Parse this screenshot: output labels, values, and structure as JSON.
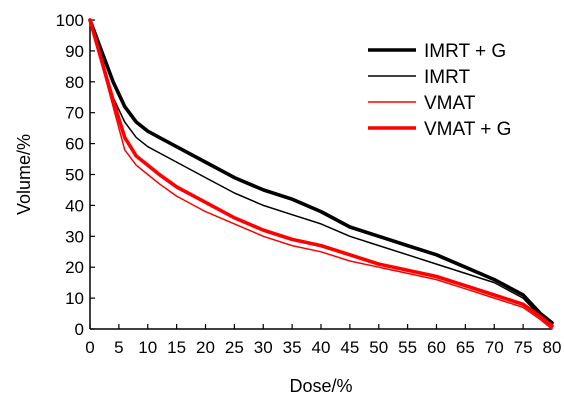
{
  "chart_data": {
    "type": "line",
    "xlabel": "Dose/%",
    "ylabel": "Volume/%",
    "xlim": [
      0,
      80
    ],
    "ylim": [
      0,
      100
    ],
    "xticks": [
      0,
      5,
      10,
      15,
      20,
      25,
      30,
      35,
      40,
      45,
      50,
      55,
      60,
      65,
      70,
      75,
      80
    ],
    "yticks": [
      0,
      10,
      20,
      30,
      40,
      50,
      60,
      70,
      80,
      90,
      100
    ],
    "grid": false,
    "legend_position": "top-right",
    "x": [
      0,
      2,
      4,
      6,
      8,
      10,
      12,
      15,
      20,
      25,
      30,
      35,
      40,
      45,
      50,
      55,
      60,
      65,
      70,
      75,
      78,
      80
    ],
    "series": [
      {
        "name": "IMRT + G",
        "color": "#000000",
        "line_weight": "thick",
        "values": [
          100,
          90,
          80,
          72,
          67,
          64,
          62,
          59,
          54,
          49,
          45,
          42,
          38,
          33,
          30,
          27,
          24,
          20,
          16,
          11,
          5,
          2
        ]
      },
      {
        "name": "IMRT",
        "color": "#000000",
        "line_weight": "thin",
        "values": [
          100,
          88,
          75,
          67,
          62,
          59,
          57,
          54,
          49,
          44,
          40,
          37,
          34,
          30,
          27,
          24,
          21,
          18,
          15,
          10,
          4,
          1
        ]
      },
      {
        "name": "VMAT",
        "color": "#ff0000",
        "line_weight": "thin",
        "values": [
          100,
          86,
          72,
          58,
          53,
          50,
          47,
          43,
          38,
          34,
          30,
          27,
          25,
          22,
          20,
          18,
          16,
          13,
          10,
          7,
          3,
          0
        ]
      },
      {
        "name": "VMAT + G",
        "color": "#ff0000",
        "line_weight": "thick",
        "values": [
          100,
          87,
          74,
          62,
          56,
          53,
          50,
          46,
          41,
          36,
          32,
          29,
          27,
          24,
          21,
          19,
          17,
          14,
          11,
          8,
          4,
          1
        ]
      }
    ]
  }
}
